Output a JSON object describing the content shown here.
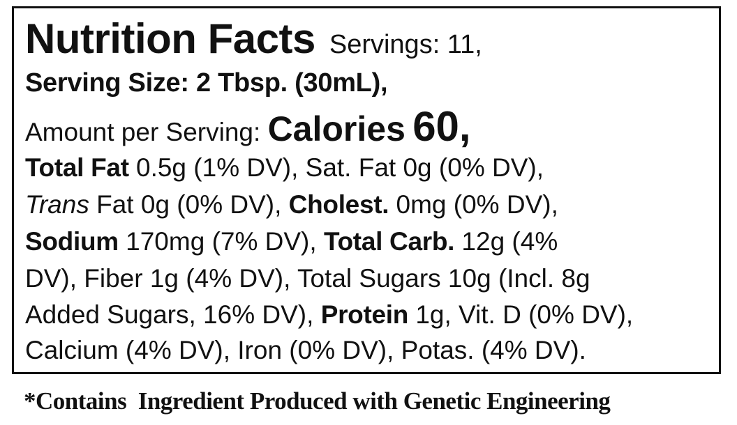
{
  "label": {
    "title": "Nutrition Facts",
    "servings": "Servings: 11,",
    "serving_size": "Serving Size: 2 Tbsp. (30mL),",
    "amount_per_serving": "Amount per Serving:",
    "calories_label": "Calories",
    "calories_value": "60,",
    "lines": [
      [
        "Total Fat",
        "0.5g (1% DV), Sat. Fat 0g (0% DV),"
      ],
      [
        "Trans",
        "Fat 0g (0% DV),",
        "Cholest.",
        "0mg (0% DV),"
      ],
      [
        "Sodium",
        "170mg (7% DV),",
        "Total Carb.",
        "12g (4%"
      ],
      [
        "DV), Fiber 1g (4% DV), Total Sugars 10g (Incl. 8g"
      ],
      [
        "Added Sugars, 16% DV),",
        "Protein",
        "1g, Vit. D (0% DV),"
      ],
      [
        "Calcium (4% DV), Iron (0% DV), Potas. (4% DV)."
      ]
    ]
  },
  "footnote": "*Contains  Ingredient Produced with Genetic Engineering"
}
